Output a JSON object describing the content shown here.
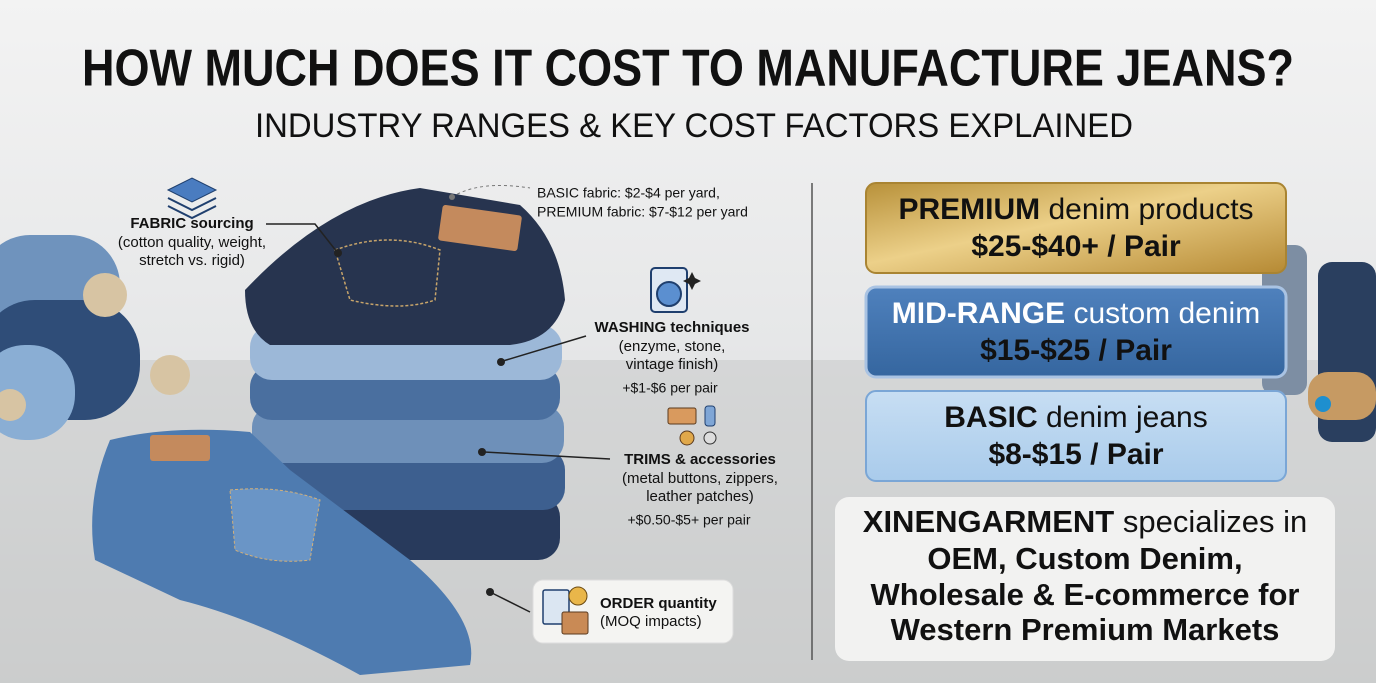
{
  "header": {
    "title": "HOW MUCH DOES IT COST TO MANUFACTURE JEANS?",
    "subtitle": "INDUSTRY RANGES & KEY COST FACTORS EXPLAINED"
  },
  "fabric_note": [
    "BASIC fabric: $2-$4 per yard,",
    "PREMIUM fabric: $7-$12 per yard"
  ],
  "factors": {
    "fabric": {
      "bold": "FABRIC",
      "label": "sourcing",
      "detail": [
        "(cotton quality, weight,",
        "stretch vs. rigid)"
      ]
    },
    "washing": {
      "bold": "WASHING",
      "label": "techniques",
      "detail": [
        "(enzyme, stone,",
        "vintage finish)"
      ],
      "cost": "+$1-$6 per pair"
    },
    "trims": {
      "bold": "TRIMS",
      "label": "& accessories",
      "detail": [
        "(metal buttons, zippers,",
        "leather patches)"
      ],
      "cost": "+$0.50-$5+ per pair"
    },
    "order": {
      "bold": "ORDER",
      "label": "quantity",
      "detail": [
        "(MOQ impacts)"
      ]
    }
  },
  "tiers": [
    {
      "bold": "PREMIUM",
      "label": "denim products",
      "price": "$25-$40+ / Pair"
    },
    {
      "bold": "MID-RANGE",
      "label": "custom denim",
      "price": "$15-$25 / Pair"
    },
    {
      "bold": "BASIC",
      "label": "denim jeans",
      "price": "$8-$15 / Pair"
    }
  ],
  "company": {
    "bold": "XINENGARMENT",
    "label": "specializes in",
    "lines": [
      "OEM, Custom Denim,",
      "Wholesale & E-commerce for",
      "Western Premium Markets"
    ]
  }
}
